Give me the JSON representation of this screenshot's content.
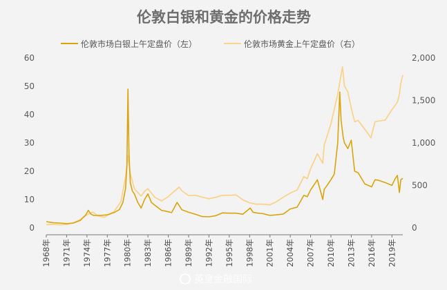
{
  "chart_data": {
    "type": "line",
    "title": "伦敦白银和黄金的价格走势",
    "legend_position": "top",
    "grid": false,
    "colors": {
      "silver": "#d9a40a",
      "gold": "#fad38e"
    },
    "x_ticks": [
      "1968年",
      "1971年",
      "1974年",
      "1977年",
      "1980年",
      "1983年",
      "1986年",
      "1989年",
      "1992年",
      "1995年",
      "1998年",
      "2001年",
      "2004年",
      "2007年",
      "2010年",
      "2013年",
      "2016年",
      "2019年"
    ],
    "x_range": [
      1968,
      2020.6
    ],
    "y_left": {
      "ticks": [
        "0",
        "10",
        "20",
        "30",
        "40",
        "50",
        "60"
      ],
      "range": [
        0,
        60
      ]
    },
    "y_right": {
      "ticks": [
        "0",
        "500",
        "1,000",
        "1,500",
        "2,000"
      ],
      "range": [
        0,
        2000
      ]
    },
    "series": [
      {
        "name": "伦敦市场白银上午定盘价（左）",
        "axis": "left",
        "color": "#d9a40a",
        "x": [
          1968,
          1969,
          1970,
          1971,
          1972,
          1973,
          1973.8,
          1974.2,
          1974.6,
          1975,
          1976,
          1977,
          1978,
          1978.8,
          1979.3,
          1979.7,
          1979.9,
          1980.05,
          1980.2,
          1980.4,
          1980.7,
          1981,
          1981.5,
          1982,
          1982.5,
          1983,
          1983.5,
          1984,
          1985,
          1985.8,
          1986.5,
          1987.3,
          1988,
          1989,
          1990,
          1991,
          1992,
          1993,
          1994,
          1995,
          1996,
          1997,
          1998.1,
          1998.5,
          1999,
          2000,
          2001,
          2002,
          2003,
          2004,
          2005,
          2006,
          2006.5,
          2007,
          2008,
          2008.8,
          2009,
          2010,
          2010.5,
          2011,
          2011.3,
          2011.5,
          2011.8,
          2012,
          2012.5,
          2013,
          2013.5,
          2014,
          2015,
          2016,
          2016.5,
          2017,
          2018,
          2019,
          2019.5,
          2019.8,
          2020.1,
          2020.3,
          2020.6
        ],
        "y": [
          2.2,
          1.8,
          1.7,
          1.5,
          1.7,
          2.6,
          4.5,
          6.2,
          4.8,
          4.4,
          4.4,
          4.6,
          5.4,
          6.5,
          9,
          14,
          22,
          49,
          26,
          16,
          13,
          12,
          9,
          7,
          10,
          12,
          9,
          8,
          6.2,
          5.8,
          5.4,
          9,
          6.4,
          5.5,
          4.8,
          4,
          3.9,
          4.3,
          5.3,
          5.2,
          5.2,
          4.8,
          7,
          5.5,
          5.3,
          5,
          4.4,
          4.6,
          4.9,
          6.7,
          7.3,
          11.5,
          11,
          13.4,
          17,
          10,
          13.5,
          17,
          19,
          30,
          48,
          38,
          32,
          30,
          28,
          31,
          20,
          19.5,
          15.5,
          14.5,
          17,
          16.8,
          16,
          15,
          17.5,
          18.5,
          12.5,
          17,
          17.5
        ]
      },
      {
        "name": "伦敦市场黄金上午定盘价（右）",
        "axis": "right",
        "color": "#fad38e",
        "x": [
          1968,
          1969,
          1970,
          1971,
          1972,
          1973,
          1974,
          1974.9,
          1975.6,
          1976.6,
          1977,
          1978,
          1979,
          1979.7,
          1980.05,
          1980.4,
          1981,
          1982,
          1982.5,
          1983,
          1984,
          1985,
          1986,
          1987.6,
          1988,
          1989,
          1990,
          1991,
          1992,
          1993,
          1994,
          1995,
          1996,
          1997,
          1998,
          1999,
          2000,
          2001,
          2002,
          2003,
          2004,
          2005,
          2006,
          2006.5,
          2007,
          2008,
          2008.8,
          2009,
          2010,
          2011,
          2011.7,
          2012,
          2012.5,
          2013,
          2013.5,
          2014,
          2015,
          2015.9,
          2016.5,
          2017,
          2018,
          2019,
          2019.8,
          2020.1,
          2020.3,
          2020.6
        ],
        "y": [
          38,
          41,
          36,
          41,
          58,
          97,
          154,
          185,
          140,
          125,
          147,
          193,
          306,
          600,
          850,
          640,
          460,
          375,
          430,
          460,
          360,
          317,
          368,
          480,
          437,
          380,
          383,
          362,
          343,
          360,
          384,
          384,
          388,
          330,
          294,
          279,
          279,
          271,
          310,
          363,
          410,
          445,
          604,
          580,
          697,
          872,
          760,
          972,
          1225,
          1572,
          1895,
          1670,
          1600,
          1410,
          1250,
          1266,
          1160,
          1060,
          1250,
          1257,
          1268,
          1392,
          1480,
          1570,
          1700,
          1800
        ]
      }
    ]
  },
  "watermark": "英皇金融国际"
}
